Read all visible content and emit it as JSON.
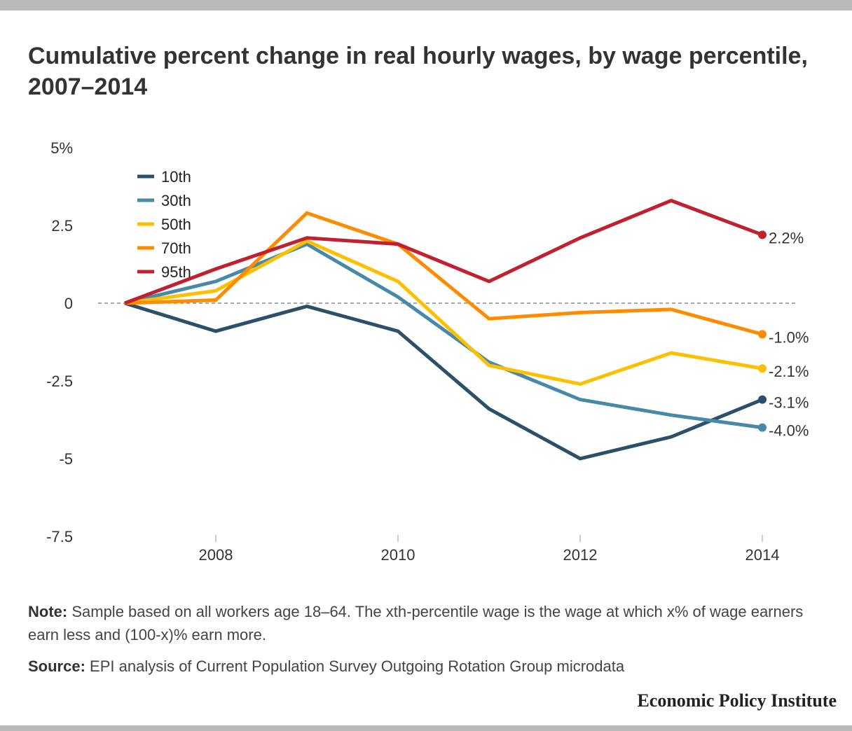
{
  "title": "Cumulative percent change in real hourly wages, by wage percentile, 2007–2014",
  "note_label": "Note:",
  "note_text": " Sample based on all workers age 18–64. The xth-percentile wage is the wage at which x% of wage earners earn less and (100-x)% earn more.",
  "source_label": "Source:",
  "source_text": " EPI analysis of Current Population Survey Outgoing Rotation Group microdata",
  "brand": "Economic Policy Institute",
  "chart_data": {
    "type": "line",
    "title": "Cumulative percent change in real hourly wages, by wage percentile, 2007–2014",
    "xlabel": "",
    "ylabel": "",
    "x": [
      2007,
      2008,
      2009,
      2010,
      2011,
      2012,
      2013,
      2014
    ],
    "xticks": [
      2008,
      2010,
      2012,
      2014
    ],
    "xtick_labels": [
      "2008",
      "2010",
      "2012",
      "2014"
    ],
    "yticks": [
      5,
      2.5,
      0,
      -2.5,
      -5,
      -7.5
    ],
    "ytick_labels": [
      "5%",
      "2.5",
      "0",
      "-2.5",
      "-5",
      "-7.5"
    ],
    "ylim": [
      -7.5,
      5
    ],
    "xlim": [
      2007,
      2014
    ],
    "grid": false,
    "zero_line": "dashed",
    "legend_position": "top-left",
    "series": [
      {
        "name": "10th",
        "color": "#2b5069",
        "values": [
          0,
          -0.9,
          -0.1,
          -0.9,
          -3.4,
          -5.0,
          -4.3,
          -3.1
        ],
        "end_label": "-3.1%"
      },
      {
        "name": "30th",
        "color": "#4888a8",
        "values": [
          0,
          0.7,
          1.9,
          0.2,
          -1.9,
          -3.1,
          -3.6,
          -4.0
        ],
        "end_label": "-4.0%"
      },
      {
        "name": "50th",
        "color": "#fcc000",
        "values": [
          0,
          0.4,
          2.0,
          0.7,
          -2.0,
          -2.6,
          -1.6,
          -2.1
        ],
        "end_label": "-2.1%"
      },
      {
        "name": "70th",
        "color": "#ff8c00",
        "values": [
          0,
          0.1,
          2.9,
          1.9,
          -0.5,
          -0.3,
          -0.2,
          -1.0
        ],
        "end_label": "-1.0%"
      },
      {
        "name": "95th",
        "color": "#c0202f",
        "values": [
          0,
          1.1,
          2.1,
          1.9,
          0.7,
          2.1,
          3.3,
          2.2
        ],
        "end_label": "2.2%"
      }
    ]
  }
}
